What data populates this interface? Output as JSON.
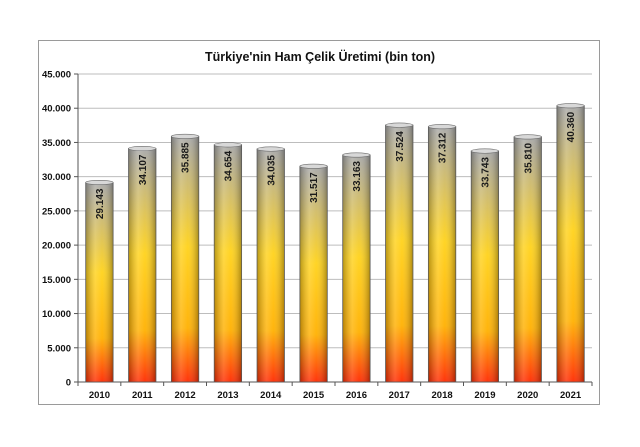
{
  "chart_data": {
    "type": "bar",
    "title": "Türkiye'nin Ham Çelik Üretimi (bin ton)",
    "categories": [
      "2010",
      "2011",
      "2012",
      "2013",
      "2014",
      "2015",
      "2016",
      "2017",
      "2018",
      "2019",
      "2020",
      "2021"
    ],
    "values": [
      29143,
      34107,
      35885,
      34654,
      34035,
      31517,
      33163,
      37524,
      37312,
      33743,
      35810,
      40360
    ],
    "value_labels": [
      "29.143",
      "34.107",
      "35.885",
      "34.654",
      "34.035",
      "31.517",
      "33.163",
      "37.524",
      "37.312",
      "33.743",
      "35.810",
      "40.360"
    ],
    "ylim": [
      0,
      45000
    ],
    "yticks": [
      0,
      5000,
      10000,
      15000,
      20000,
      25000,
      30000,
      35000,
      40000,
      45000
    ],
    "ytick_labels": [
      "0",
      "5.000",
      "10.000",
      "15.000",
      "20.000",
      "25.000",
      "30.000",
      "35.000",
      "40.000",
      "45.000"
    ],
    "grid": true,
    "legend": "none",
    "colors": {
      "bar_top": "#a8a8a8",
      "bar_mid": "#ffd21a",
      "bar_bottom": "#ff2a00",
      "grid": "#bdbdbd",
      "axis": "#555555"
    }
  }
}
